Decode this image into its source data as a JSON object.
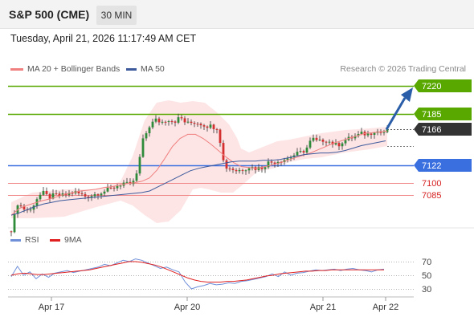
{
  "header": {
    "title": "S&P 500 (CME)",
    "timeframe": "30 MIN"
  },
  "timestamp": "Tuesday, April 21, 2026 11:17:49 AM CET",
  "credit": "Research © 2026 Trading Central",
  "colors": {
    "support": "#3a6fe0",
    "resistance": "#58a800",
    "pivot_bg": "#333333",
    "arrow": "#2b5ea8",
    "ma20": "#f08080",
    "ma50": "#3d5a9c",
    "rsi": "#6f8fd8",
    "rsi_ma": "#e02020",
    "up": "#2e8b3a",
    "down": "#d43030"
  },
  "chart_data": [
    {
      "type": "candlestick",
      "x_ticks": [
        "Apr 17",
        "Apr 20",
        "Apr 21",
        "Apr 22"
      ],
      "ylim": [
        7020,
        7240
      ],
      "legend": [
        {
          "name": "MA 20 + Bollinger Bands",
          "color": "#f08080"
        },
        {
          "name": "MA 50",
          "color": "#3d5a9c"
        }
      ],
      "levels": [
        {
          "value": 7220,
          "label": "7220",
          "kind": "resistance"
        },
        {
          "value": 7185,
          "label": "7185",
          "kind": "resistance"
        },
        {
          "value": 7166,
          "label": "7166",
          "kind": "pivot"
        },
        {
          "value": 7122,
          "label": "7122",
          "kind": "support"
        },
        {
          "value": 7100,
          "label": "7100",
          "kind": "minor"
        },
        {
          "value": 7085,
          "label": "7085",
          "kind": "minor"
        }
      ],
      "close_path": [
        7042,
        7075,
        7068,
        7065,
        7080,
        7088,
        7082,
        7085,
        7084,
        7086,
        7089,
        7086,
        7083,
        7085,
        7088,
        7090,
        7093,
        7097,
        7100,
        7096,
        7110,
        7152,
        7170,
        7178,
        7175,
        7179,
        7176,
        7181,
        7173,
        7175,
        7174,
        7171,
        7170,
        7168,
        7120,
        7118,
        7115,
        7117,
        7120,
        7118,
        7119,
        7125,
        7126,
        7128,
        7130,
        7134,
        7137,
        7141,
        7155,
        7150,
        7154,
        7150,
        7146,
        7152,
        7155,
        7158,
        7161,
        7160,
        7165,
        7162,
        7164
      ],
      "forecast_arrow": {
        "from": 7166,
        "to": 7220
      },
      "ma20_path": [
        7060,
        7068,
        7072,
        7075,
        7078,
        7080,
        7083,
        7086,
        7088,
        7090,
        7091,
        7092,
        7094,
        7095,
        7097,
        7099,
        7100,
        7102,
        7106,
        7116,
        7130,
        7145,
        7155,
        7160,
        7160,
        7155,
        7148,
        7140,
        7132,
        7125,
        7120,
        7119,
        7118,
        7120,
        7122,
        7125,
        7128,
        7131,
        7134,
        7137,
        7141,
        7145,
        7149,
        7152,
        7155,
        7158,
        7161,
        7162,
        7163,
        7164
      ],
      "ma50_path": [
        7060,
        7063,
        7067,
        7071,
        7074,
        7076,
        7078,
        7079,
        7080,
        7081,
        7082,
        7083,
        7084,
        7085,
        7086,
        7087,
        7088,
        7090,
        7095,
        7100,
        7105,
        7110,
        7115,
        7118,
        7120,
        7122,
        7124,
        7126,
        7127,
        7127,
        7127,
        7128,
        7128,
        7129,
        7131,
        7133,
        7135,
        7136,
        7137,
        7137,
        7138,
        7140,
        7143,
        7146,
        7148,
        7150,
        7152
      ]
    },
    {
      "type": "line",
      "name": "RSI",
      "ylim": [
        20,
        80
      ],
      "y_ticks": [
        70,
        50,
        30
      ],
      "legend": [
        {
          "name": "RSI",
          "color": "#6f8fd8"
        },
        {
          "name": "9MA",
          "color": "#e02020"
        }
      ],
      "series": [
        {
          "name": "RSI",
          "values": [
            48,
            63,
            50,
            55,
            45,
            52,
            47,
            53,
            55,
            57,
            54,
            56,
            58,
            60,
            62,
            66,
            64,
            68,
            72,
            70,
            74,
            72,
            68,
            64,
            60,
            62,
            58,
            55,
            40,
            30,
            33,
            35,
            38,
            36,
            37,
            39,
            38,
            41,
            42,
            44,
            46,
            48,
            52,
            48,
            55,
            50,
            53,
            54,
            56,
            58,
            57,
            58,
            59,
            57,
            59,
            60,
            58,
            57,
            55,
            58,
            59
          ]
        },
        {
          "name": "9MA",
          "values": [
            50,
            52,
            53,
            52,
            51,
            51,
            52,
            53,
            54,
            55,
            56,
            57,
            58,
            60,
            62,
            64,
            66,
            68,
            70,
            70,
            69,
            67,
            65,
            62,
            58,
            54,
            50,
            46,
            43,
            41,
            40,
            40,
            40,
            41,
            41,
            42,
            43,
            45,
            47,
            49,
            50,
            52,
            53,
            54,
            55,
            56,
            56,
            57,
            57,
            58,
            58,
            58,
            58,
            58,
            58,
            58,
            58,
            58
          ]
        }
      ]
    }
  ]
}
